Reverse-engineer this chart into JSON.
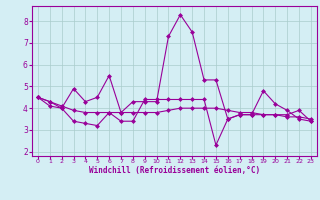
{
  "x": [
    0,
    1,
    2,
    3,
    4,
    5,
    6,
    7,
    8,
    9,
    10,
    11,
    12,
    13,
    14,
    15,
    16,
    17,
    18,
    19,
    20,
    21,
    22,
    23
  ],
  "line1": [
    4.5,
    4.3,
    4.0,
    4.9,
    4.3,
    4.5,
    5.5,
    3.8,
    4.3,
    4.3,
    4.3,
    7.3,
    8.3,
    7.5,
    5.3,
    5.3,
    3.5,
    3.7,
    3.7,
    4.8,
    4.2,
    3.9,
    3.5,
    3.4
  ],
  "line2": [
    4.5,
    4.1,
    4.0,
    3.4,
    3.3,
    3.2,
    3.8,
    3.4,
    3.4,
    4.4,
    4.4,
    4.4,
    4.4,
    4.4,
    4.4,
    2.3,
    3.5,
    3.7,
    3.7,
    3.7,
    3.7,
    3.7,
    3.9,
    3.4
  ],
  "line3": [
    4.5,
    4.3,
    4.1,
    3.9,
    3.8,
    3.8,
    3.8,
    3.8,
    3.8,
    3.8,
    3.8,
    3.9,
    4.0,
    4.0,
    4.0,
    4.0,
    3.9,
    3.8,
    3.8,
    3.7,
    3.7,
    3.6,
    3.6,
    3.5
  ],
  "color": "#990099",
  "bg_color": "#d4eef4",
  "grid_color": "#aacccc",
  "xlabel": "Windchill (Refroidissement éolien,°C)",
  "ylim": [
    1.8,
    8.7
  ],
  "xlim": [
    -0.5,
    23.5
  ],
  "yticks": [
    2,
    3,
    4,
    5,
    6,
    7,
    8
  ],
  "xticks": [
    0,
    1,
    2,
    3,
    4,
    5,
    6,
    7,
    8,
    9,
    10,
    11,
    12,
    13,
    14,
    15,
    16,
    17,
    18,
    19,
    20,
    21,
    22,
    23
  ],
  "marker": "D",
  "markersize": 2.5,
  "linewidth": 0.8
}
